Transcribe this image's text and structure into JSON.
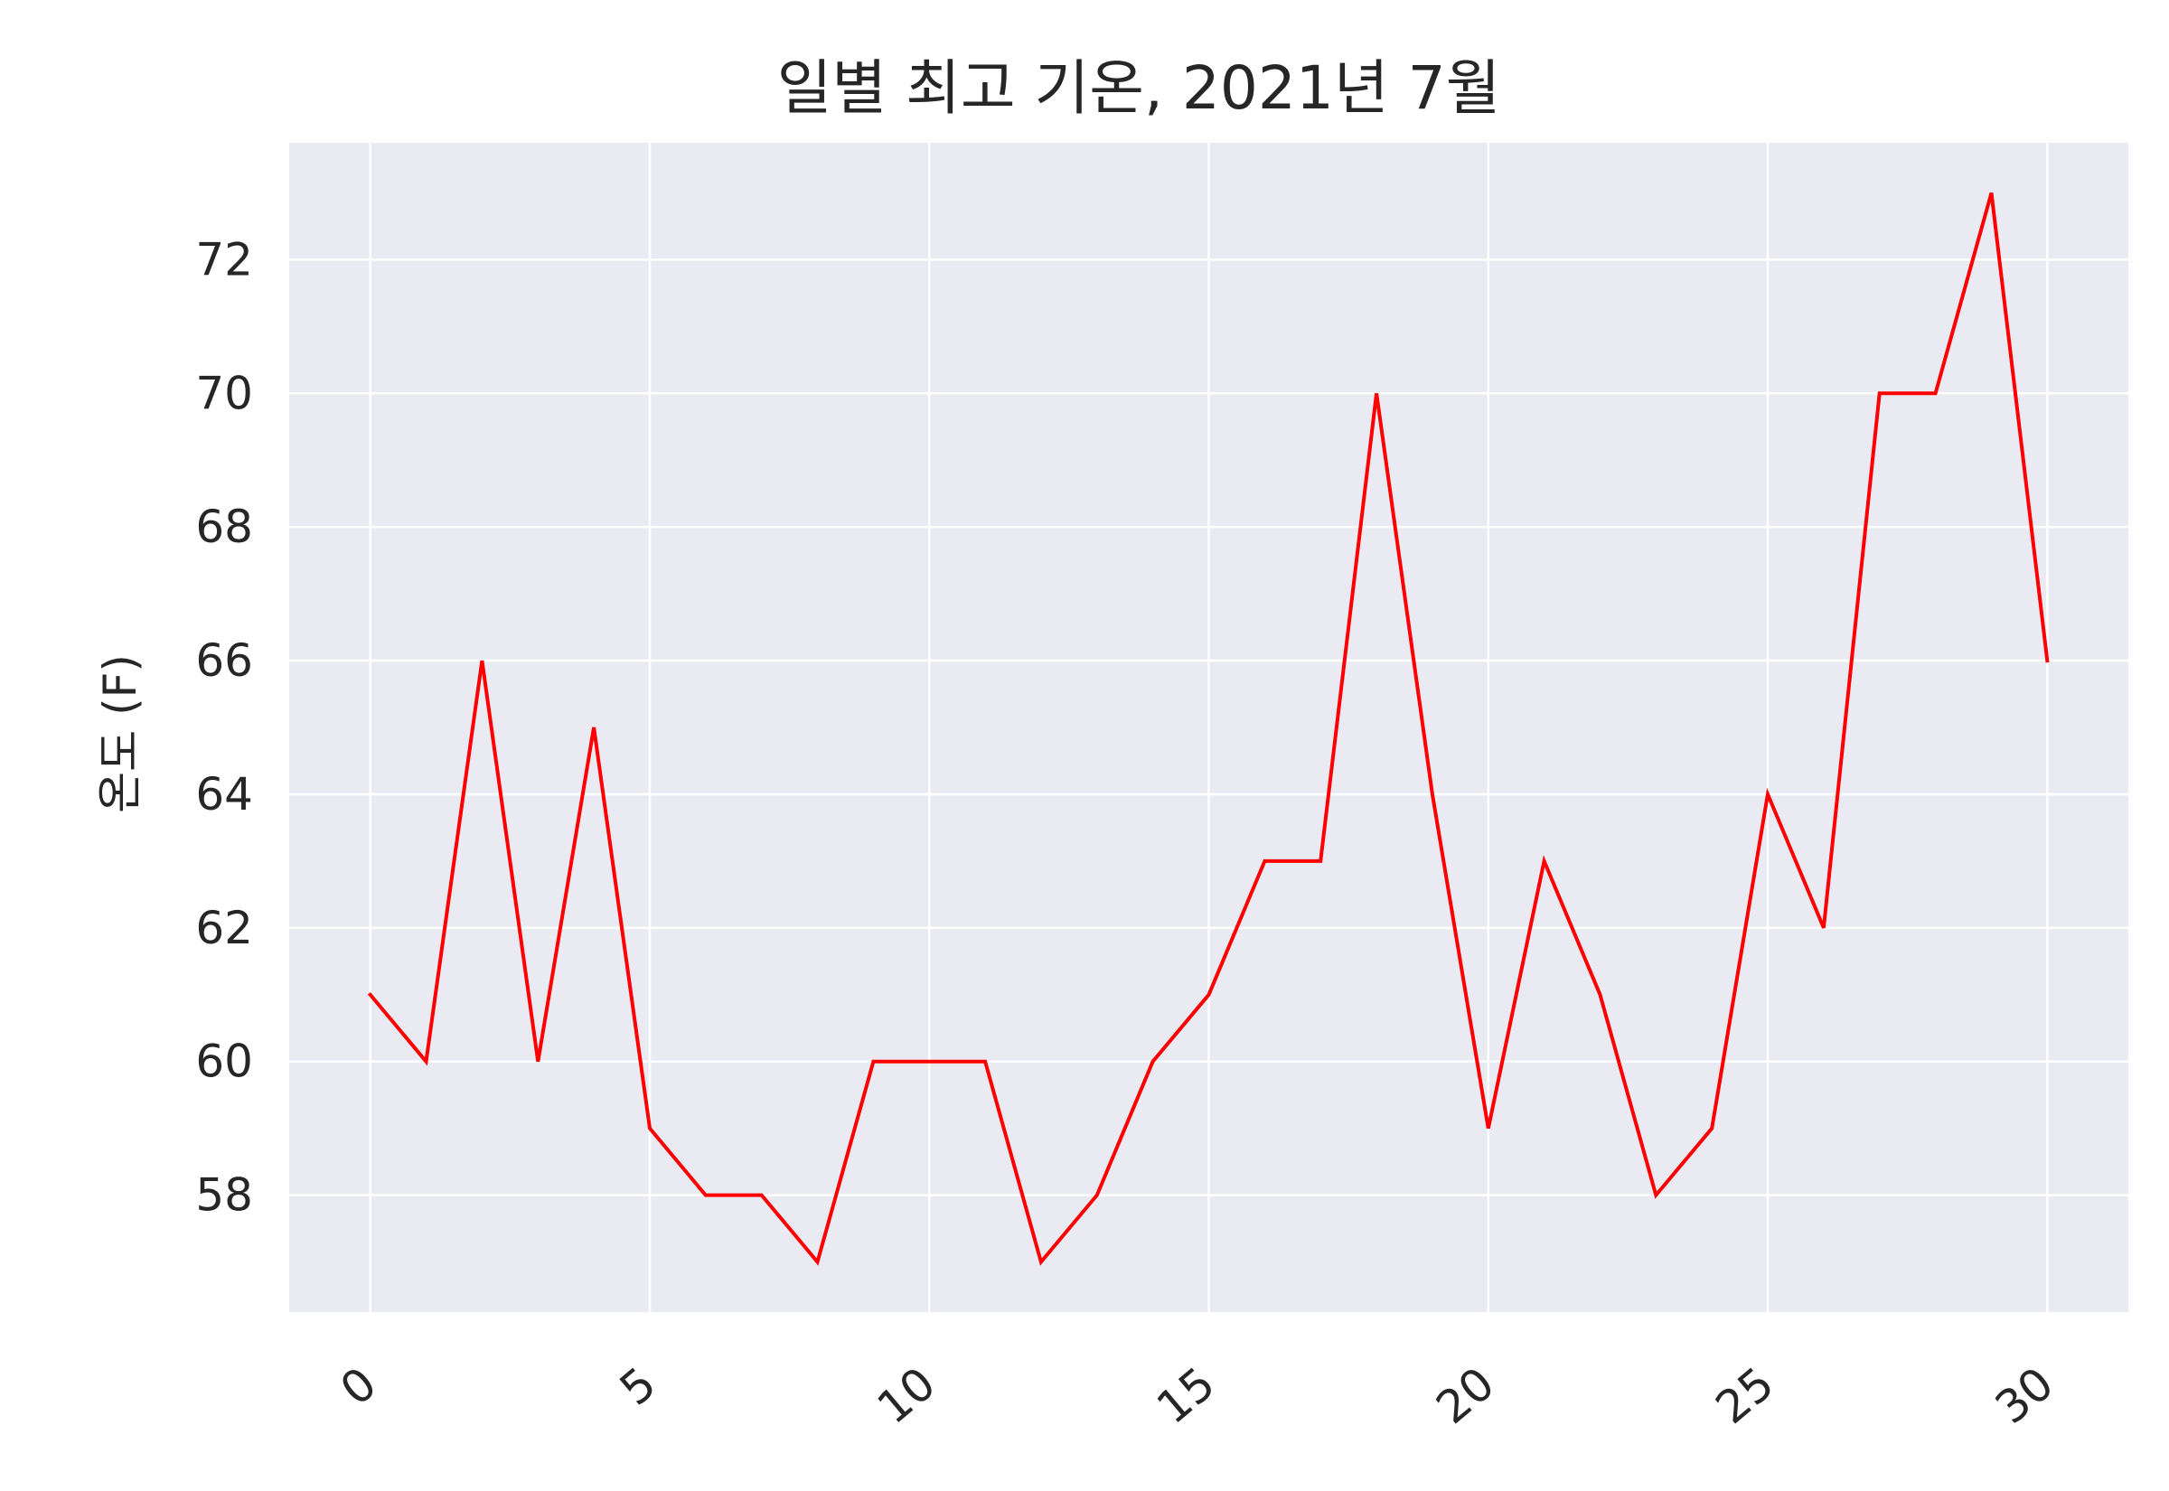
{
  "chart_data": {
    "type": "line",
    "title": "일별 최고 기온, 2021년 7월",
    "xlabel": "",
    "ylabel": "온도 (F)",
    "x": [
      0,
      1,
      2,
      3,
      4,
      5,
      6,
      7,
      8,
      9,
      10,
      11,
      12,
      13,
      14,
      15,
      16,
      17,
      18,
      19,
      20,
      21,
      22,
      23,
      24,
      25,
      26,
      27,
      28,
      29,
      30
    ],
    "series": [
      {
        "values": [
          61,
          60,
          66,
          60,
          65,
          59,
          58,
          58,
          57,
          60,
          60,
          60,
          57,
          58,
          60,
          61,
          63,
          63,
          70,
          64,
          59,
          63,
          61,
          58,
          59,
          64,
          62,
          70,
          70,
          73,
          66
        ],
        "color": "#ff0000"
      }
    ],
    "xticks": [
      0,
      5,
      10,
      15,
      20,
      25,
      30
    ],
    "yticks": [
      58,
      60,
      62,
      64,
      66,
      68,
      70,
      72
    ],
    "xlim": [
      -1.45,
      31.45
    ],
    "ylim": [
      56.25,
      73.75
    ],
    "grid": true,
    "colors": {
      "background": "#eaeaf2",
      "grid": "#ffffff",
      "text": "#262626"
    }
  }
}
